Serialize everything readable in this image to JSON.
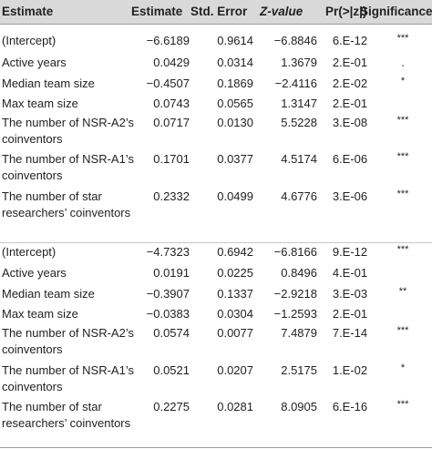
{
  "header": {
    "col_label": "Estimate",
    "col_estimate": "Estimate",
    "col_std_error": "Std. Error",
    "col_z_value": "Z-value",
    "col_p_value": "Pr(>|z|)",
    "col_significance": "Significance"
  },
  "rows": [
    {
      "label": "(Intercept)",
      "estimate": "−6.6189",
      "std_error": "0.9614",
      "z_value": "−6.8846",
      "p_value": "6.E-12",
      "significance": "***"
    },
    {
      "label": "Active years",
      "estimate": "0.0429",
      "std_error": "0.0314",
      "z_value": "1.3679",
      "p_value": "2.E-01",
      "significance": "."
    },
    {
      "label": "Median team size",
      "estimate": "−0.4507",
      "std_error": "0.1869",
      "z_value": "−2.4116",
      "p_value": "2.E-02",
      "significance": "*"
    },
    {
      "label": "Max team size",
      "estimate": "0.0743",
      "std_error": "0.0565",
      "z_value": "1.3147",
      "p_value": "2.E-01",
      "significance": ""
    },
    {
      "label": "The number of NSR-A2’s coinventors",
      "estimate": "0.0717",
      "std_error": "0.0130",
      "z_value": "5.5228",
      "p_value": "3.E-08",
      "significance": "***"
    },
    {
      "label": "The number of NSR-A1’s coinventors",
      "estimate": "0.1701",
      "std_error": "0.0377",
      "z_value": "4.5174",
      "p_value": "6.E-06",
      "significance": "***"
    },
    {
      "label": "The number of star researchers’ coinventors",
      "estimate": "0.2332",
      "std_error": "0.0499",
      "z_value": "4.6776",
      "p_value": "3.E-06",
      "significance": "***"
    },
    {
      "label": "(Intercept)",
      "estimate": "−4.7323",
      "std_error": "0.6942",
      "z_value": "−6.8166",
      "p_value": "9.E-12",
      "significance": "***"
    },
    {
      "label": "Active years",
      "estimate": "0.0191",
      "std_error": "0.0225",
      "z_value": "0.8496",
      "p_value": "4.E-01",
      "significance": ""
    },
    {
      "label": "Median team size",
      "estimate": "−0.3907",
      "std_error": "0.1337",
      "z_value": "−2.9218",
      "p_value": "3.E-03",
      "significance": "**"
    },
    {
      "label": "Max team size",
      "estimate": "−0.0383",
      "std_error": "0.0304",
      "z_value": "−1.2593",
      "p_value": "2.E-01",
      "significance": ""
    },
    {
      "label": "The number of NSR-A2’s coinventors",
      "estimate": "0.0574",
      "std_error": "0.0077",
      "z_value": "7.4879",
      "p_value": "7.E-14",
      "significance": "***"
    },
    {
      "label": "The number of NSR-A1’s coinventors",
      "estimate": "0.0521",
      "std_error": "0.0207",
      "z_value": "2.5175",
      "p_value": "1.E-02",
      "significance": "*"
    },
    {
      "label": "The number of star researchers’ coinventors",
      "estimate": "0.2275",
      "std_error": "0.0281",
      "z_value": "8.0905",
      "p_value": "6.E-16",
      "significance": "***"
    }
  ]
}
